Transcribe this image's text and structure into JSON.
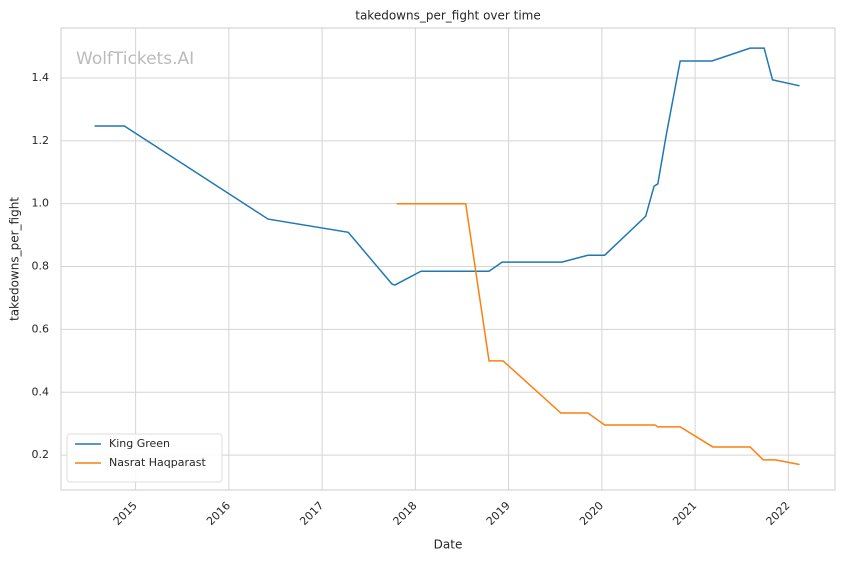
{
  "chart_data": {
    "type": "line",
    "title": "takedowns_per_fight over time",
    "xlabel": "Date",
    "ylabel": "takedowns_per_fight",
    "watermark": "WolfTickets.AI",
    "xlim": [
      2014.2,
      2022.5
    ],
    "xticks": [
      2015,
      2016,
      2017,
      2018,
      2019,
      2020,
      2021,
      2022
    ],
    "ylim": [
      0.089,
      1.559
    ],
    "yticks": [
      {
        "value": 0.2,
        "label": "0.2"
      },
      {
        "value": 0.4,
        "label": "0.4"
      },
      {
        "value": 0.6,
        "label": "0.6"
      },
      {
        "value": 0.8,
        "label": "0.8"
      },
      {
        "value": 1.0,
        "label": "1.0"
      },
      {
        "value": 1.2,
        "label": "1.2"
      },
      {
        "value": 1.4,
        "label": "1.4"
      }
    ],
    "grid": true,
    "legend": "lower left",
    "series": [
      {
        "name": "King Green",
        "color": "#1f77b4",
        "x": [
          2014.56,
          2014.88,
          2016.42,
          2017.28,
          2017.75,
          2017.78,
          2018.06,
          2018.79,
          2018.93,
          2019.57,
          2019.85,
          2020.03,
          2020.47,
          2020.56,
          2020.6,
          2020.69,
          2020.84,
          2021.18,
          2021.59,
          2021.74,
          2021.83,
          2022.12
        ],
        "values": [
          1.247,
          1.247,
          0.951,
          0.909,
          0.744,
          0.741,
          0.785,
          0.785,
          0.814,
          0.814,
          0.836,
          0.836,
          0.96,
          1.056,
          1.063,
          1.218,
          1.454,
          1.454,
          1.495,
          1.495,
          1.394,
          1.375
        ]
      },
      {
        "name": "Nasrat Haqparast",
        "color": "#ff7f0e",
        "x": [
          2017.8,
          2018.54,
          2018.79,
          2018.94,
          2019.56,
          2019.85,
          2020.03,
          2020.57,
          2020.6,
          2020.84,
          2021.19,
          2021.59,
          2021.73,
          2021.86,
          2022.12
        ],
        "values": [
          1.0,
          1.0,
          0.5,
          0.5,
          0.334,
          0.334,
          0.296,
          0.296,
          0.29,
          0.29,
          0.226,
          0.226,
          0.185,
          0.185,
          0.17
        ]
      }
    ]
  }
}
